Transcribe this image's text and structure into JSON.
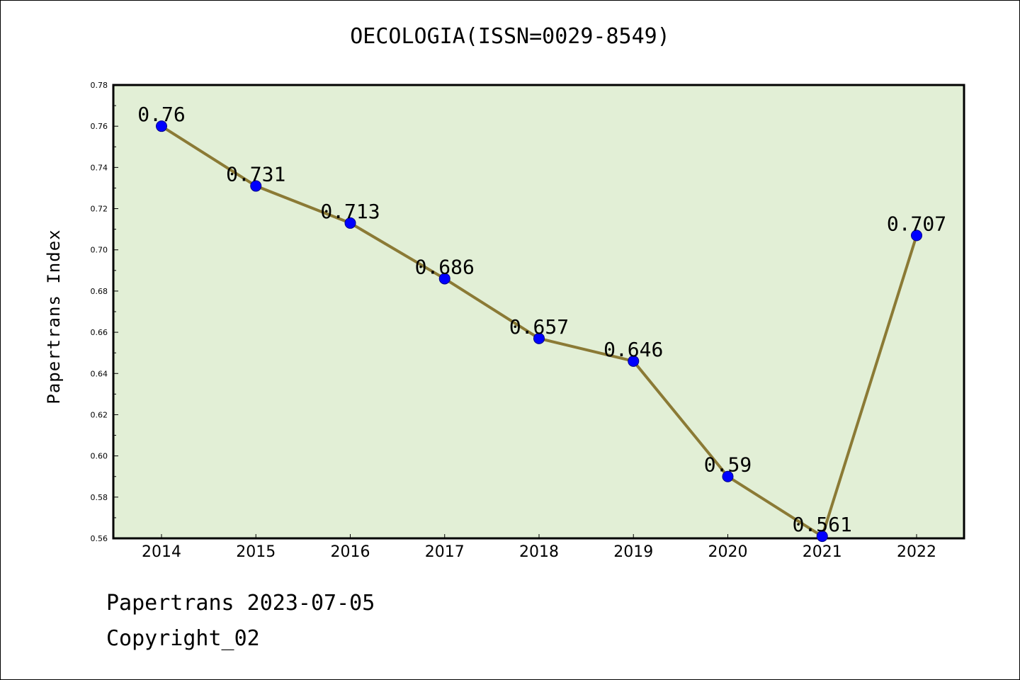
{
  "chart_data": {
    "type": "line",
    "title": "OECOLOGIA(ISSN=0029-8549)",
    "xlabel": "",
    "ylabel": "Papertrans Index",
    "categories": [
      "2014",
      "2015",
      "2016",
      "2017",
      "2018",
      "2019",
      "2020",
      "2021",
      "2022"
    ],
    "values": [
      0.76,
      0.731,
      0.713,
      0.686,
      0.657,
      0.646,
      0.59,
      0.561,
      0.707
    ],
    "data_labels": [
      "0.76",
      "0.731",
      "0.713",
      "0.686",
      "0.657",
      "0.646",
      "0.59",
      "0.561",
      "0.707"
    ],
    "ylim": [
      0.56,
      0.78
    ],
    "yticks": [
      0.56,
      0.58,
      0.6,
      0.62,
      0.64,
      0.66,
      0.68,
      0.7,
      0.72,
      0.74,
      0.76,
      0.78
    ],
    "ytick_labels": [
      "0.56",
      "0.58",
      "0.60",
      "0.62",
      "0.64",
      "0.66",
      "0.68",
      "0.70",
      "0.72",
      "0.74",
      "0.76",
      "0.78"
    ],
    "grid": false,
    "colors": {
      "plot_background": "#e2efd6",
      "line": "#8b7a35",
      "marker": "#0000ff"
    }
  },
  "footer": {
    "line1": "Papertrans 2023-07-05",
    "line2": "Copyright_02"
  }
}
